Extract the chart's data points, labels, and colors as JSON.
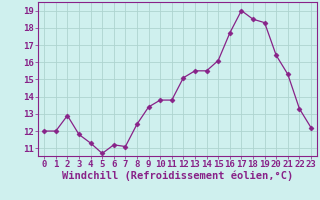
{
  "x": [
    0,
    1,
    2,
    3,
    4,
    5,
    6,
    7,
    8,
    9,
    10,
    11,
    12,
    13,
    14,
    15,
    16,
    17,
    18,
    19,
    20,
    21,
    22,
    23
  ],
  "y": [
    12.0,
    12.0,
    12.9,
    11.8,
    11.3,
    10.7,
    11.2,
    11.1,
    12.4,
    13.4,
    13.8,
    13.8,
    15.1,
    15.5,
    15.5,
    16.1,
    17.7,
    19.0,
    18.5,
    18.3,
    16.4,
    15.3,
    13.3,
    12.2
  ],
  "line_color": "#882288",
  "marker": "D",
  "markersize": 2.5,
  "linewidth": 0.9,
  "bg_color": "#cff0ee",
  "grid_color": "#aed4d0",
  "xlabel": "Windchill (Refroidissement éolien,°C)",
  "xlabel_fontsize": 7.5,
  "ylabel_ticks": [
    11,
    12,
    13,
    14,
    15,
    16,
    17,
    18,
    19
  ],
  "xlim": [
    -0.5,
    23.5
  ],
  "ylim": [
    10.55,
    19.5
  ],
  "tick_fontsize": 6.5,
  "xtick_labels": [
    "0",
    "1",
    "2",
    "3",
    "4",
    "5",
    "6",
    "7",
    "8",
    "9",
    "10",
    "11",
    "12",
    "13",
    "14",
    "15",
    "16",
    "17",
    "18",
    "19",
    "20",
    "21",
    "22",
    "23"
  ]
}
